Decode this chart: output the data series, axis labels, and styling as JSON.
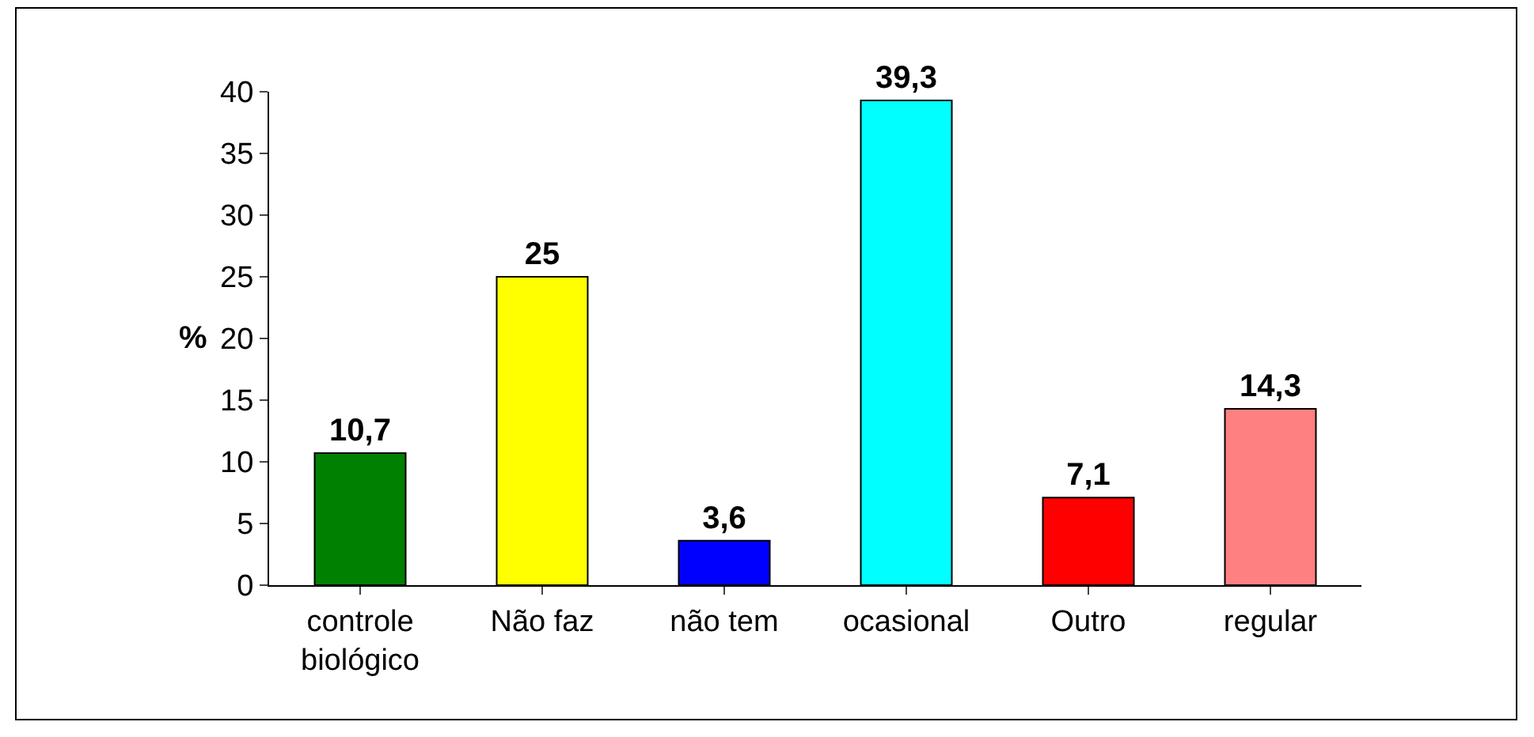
{
  "chart_data": {
    "type": "bar",
    "ylabel": "%",
    "categories": [
      "controle biológico",
      "Não faz",
      "não tem",
      "ocasional",
      "Outro",
      "regular"
    ],
    "values": [
      10.7,
      25,
      3.6,
      39.3,
      7.1,
      14.3
    ],
    "value_labels": [
      "10,7",
      "25",
      "3,6",
      "39,3",
      "7,1",
      "14,3"
    ],
    "colors": [
      "#008000",
      "#ffff00",
      "#0000ff",
      "#00ffff",
      "#ff0000",
      "#ff8080"
    ],
    "ylim": [
      0,
      40
    ],
    "yticks": [
      0,
      5,
      10,
      15,
      20,
      25,
      30,
      35,
      40
    ]
  }
}
